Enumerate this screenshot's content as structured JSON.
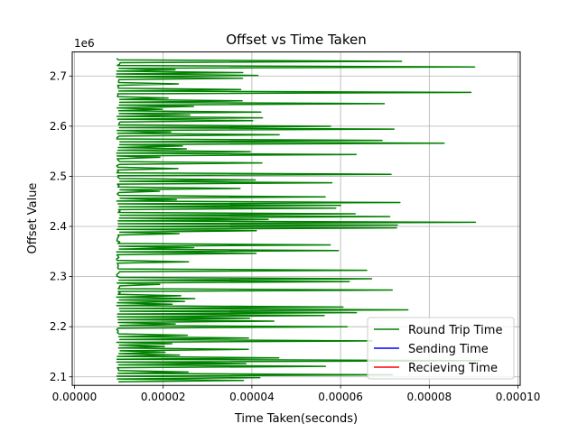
{
  "chart_data": {
    "type": "line",
    "title": "Offset vs Time Taken",
    "xlabel": "Time Taken(seconds)",
    "ylabel": "Offset Value",
    "y_offset_label": "1e6",
    "xlim": [
      -5e-07,
      0.0001005
    ],
    "ylim": [
      2083000,
      2748000
    ],
    "x_ticks": [
      0.0,
      2e-05,
      4e-05,
      6e-05,
      8e-05,
      0.0001
    ],
    "x_tick_labels": [
      "0.00000",
      "0.00002",
      "0.00004",
      "0.00006",
      "0.00008",
      "0.00010"
    ],
    "y_ticks": [
      2100000,
      2200000,
      2300000,
      2400000,
      2500000,
      2600000,
      2700000
    ],
    "y_tick_labels": [
      "2.1",
      "2.2",
      "2.3",
      "2.4",
      "2.5",
      "2.6",
      "2.7"
    ],
    "grid": true,
    "legend_position": "bottom-right",
    "series": [
      {
        "name": "Round Trip Time",
        "color": "#008000",
        "y_range": [
          2090000,
          2735000
        ]
      },
      {
        "name": "Sending Time",
        "color": "#0000ff",
        "values": []
      },
      {
        "name": "Recieving Time",
        "color": "#ff0000",
        "values": []
      }
    ]
  }
}
